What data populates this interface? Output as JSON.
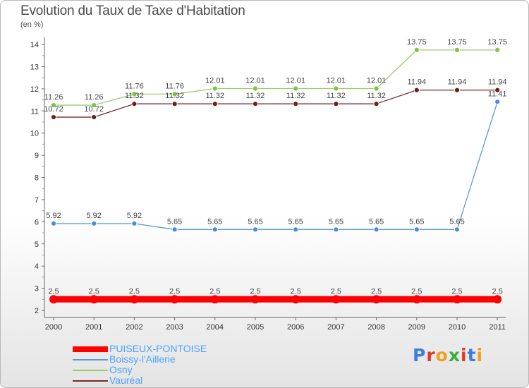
{
  "header": {
    "title": "Evolution du Taux de Taxe d'Habitation",
    "unit": "(en %)"
  },
  "logo": {
    "text": "Proxiti",
    "colors": [
      "#3b7de0",
      "#e23a2a",
      "#f0a020",
      "#3cae3c",
      "#e23a2a",
      "#3b7de0",
      "#f0a020"
    ]
  },
  "chart_data": {
    "type": "line",
    "title": "Evolution du Taux de Taxe d'Habitation",
    "ylabel": "(en %)",
    "xlabel": "",
    "ylim": [
      2,
      14
    ],
    "yticks": [
      2,
      3,
      4,
      5,
      6,
      7,
      8,
      9,
      10,
      11,
      12,
      13,
      14
    ],
    "grid": false,
    "legend_position": "bottom-left",
    "x": [
      "2000",
      "2001",
      "2002",
      "2003",
      "2004",
      "2005",
      "2006",
      "2007",
      "2008",
      "2009",
      "2010",
      "2011"
    ],
    "series": [
      {
        "name": "PUISEUX-PONTOISE",
        "color": "#ff0000",
        "emphasis": true,
        "values": [
          2.5,
          2.5,
          2.5,
          2.5,
          2.5,
          2.5,
          2.5,
          2.5,
          2.5,
          2.5,
          2.5,
          2.5
        ],
        "labels": [
          "2.5",
          "2.5",
          "2.5",
          "2.5",
          "2.5",
          "2.5",
          "2.5",
          "2.5",
          "2.5",
          "2.5",
          "2.5",
          "2.5"
        ]
      },
      {
        "name": "Boissy-l'Aillerie",
        "color": "#5b9bd5",
        "marker": "#4a8fd6",
        "values": [
          5.92,
          5.92,
          5.92,
          5.65,
          5.65,
          5.65,
          5.65,
          5.65,
          5.65,
          5.65,
          5.65,
          11.41
        ],
        "labels": [
          "5.92",
          "5.92",
          "5.92",
          "5.65",
          "5.65",
          "5.65",
          "5.65",
          "5.65",
          "5.65",
          "5.65",
          "5.65",
          "11.41"
        ]
      },
      {
        "name": "Osny",
        "color": "#9acd6b",
        "marker": "#7cc444",
        "values": [
          11.26,
          11.26,
          11.76,
          11.76,
          12.01,
          12.01,
          12.01,
          12.01,
          12.01,
          13.75,
          13.75,
          13.75
        ],
        "labels": [
          "11.26",
          "11.26",
          "11.76",
          "11.76",
          "12.01",
          "12.01",
          "12.01",
          "12.01",
          "12.01",
          "13.75",
          "13.75",
          "13.75"
        ]
      },
      {
        "name": "Vauréal",
        "color": "#7b2c2c",
        "marker": "#6a1f1f",
        "values": [
          10.72,
          10.72,
          11.32,
          11.32,
          11.32,
          11.32,
          11.32,
          11.32,
          11.32,
          11.94,
          11.94,
          11.94
        ],
        "labels": [
          "10.72",
          "10.72",
          "11.32",
          "11.32",
          "11.32",
          "11.32",
          "11.32",
          "11.32",
          "11.32",
          "11.94",
          "11.94",
          "11.94"
        ]
      }
    ]
  }
}
